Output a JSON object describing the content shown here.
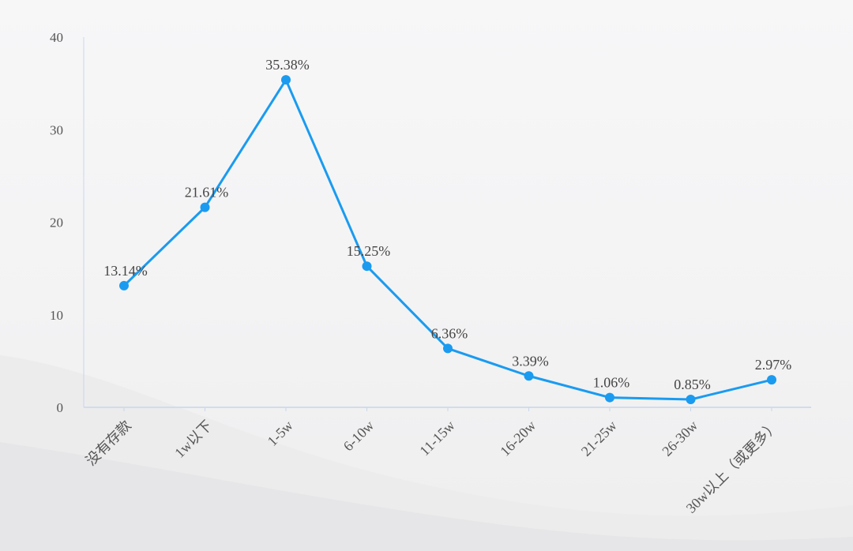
{
  "chart_data": {
    "type": "line",
    "title": "",
    "xlabel": "",
    "ylabel": "",
    "categories": [
      "没有存款",
      "1w以下",
      "1-5w",
      "6-10w",
      "11-15w",
      "16-20w",
      "21-25w",
      "26-30w",
      "30w以上（或更多）"
    ],
    "values": [
      13.14,
      21.61,
      35.38,
      15.25,
      6.36,
      3.39,
      1.06,
      0.85,
      2.97
    ],
    "data_labels": [
      "13.14%",
      "21.61%",
      "35.38%",
      "15.25%",
      "6.36%",
      "3.39%",
      "1.06%",
      "0.85%",
      "2.97%"
    ],
    "ylim": [
      0,
      40
    ],
    "yticks": [
      0,
      10,
      20,
      30,
      40
    ],
    "grid": false,
    "legend": "none",
    "colors": {
      "line": "#1a9bf0",
      "marker": "#1a9bf0",
      "axis": "#c9d6ea",
      "text": "#555555"
    }
  }
}
